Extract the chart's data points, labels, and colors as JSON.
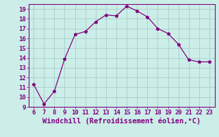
{
  "x": [
    6,
    7,
    8,
    9,
    10,
    11,
    12,
    13,
    14,
    15,
    16,
    17,
    18,
    19,
    20,
    21,
    22,
    23
  ],
  "y": [
    11.3,
    9.3,
    10.6,
    13.9,
    16.4,
    16.7,
    17.7,
    18.4,
    18.3,
    19.3,
    18.8,
    18.2,
    17.0,
    16.5,
    15.4,
    13.8,
    13.6,
    13.6
  ],
  "line_color": "#800080",
  "marker": "*",
  "bg_color": "#cceee8",
  "xlabel": "Windchill (Refroidissement éolien,°C)",
  "xlim": [
    5.5,
    23.5
  ],
  "ylim": [
    9,
    19.5
  ],
  "yticks": [
    9,
    10,
    11,
    12,
    13,
    14,
    15,
    16,
    17,
    18,
    19
  ],
  "xticks": [
    6,
    7,
    8,
    9,
    10,
    11,
    12,
    13,
    14,
    15,
    16,
    17,
    18,
    19,
    20,
    21,
    22,
    23
  ],
  "grid_color": "#aacccc",
  "xlabel_color": "#800080",
  "tick_color": "#800080",
  "spine_color": "#800080",
  "xlabel_fontsize": 7.5,
  "tick_fontsize": 6.5,
  "marker_size": 3.5,
  "line_width": 0.9
}
